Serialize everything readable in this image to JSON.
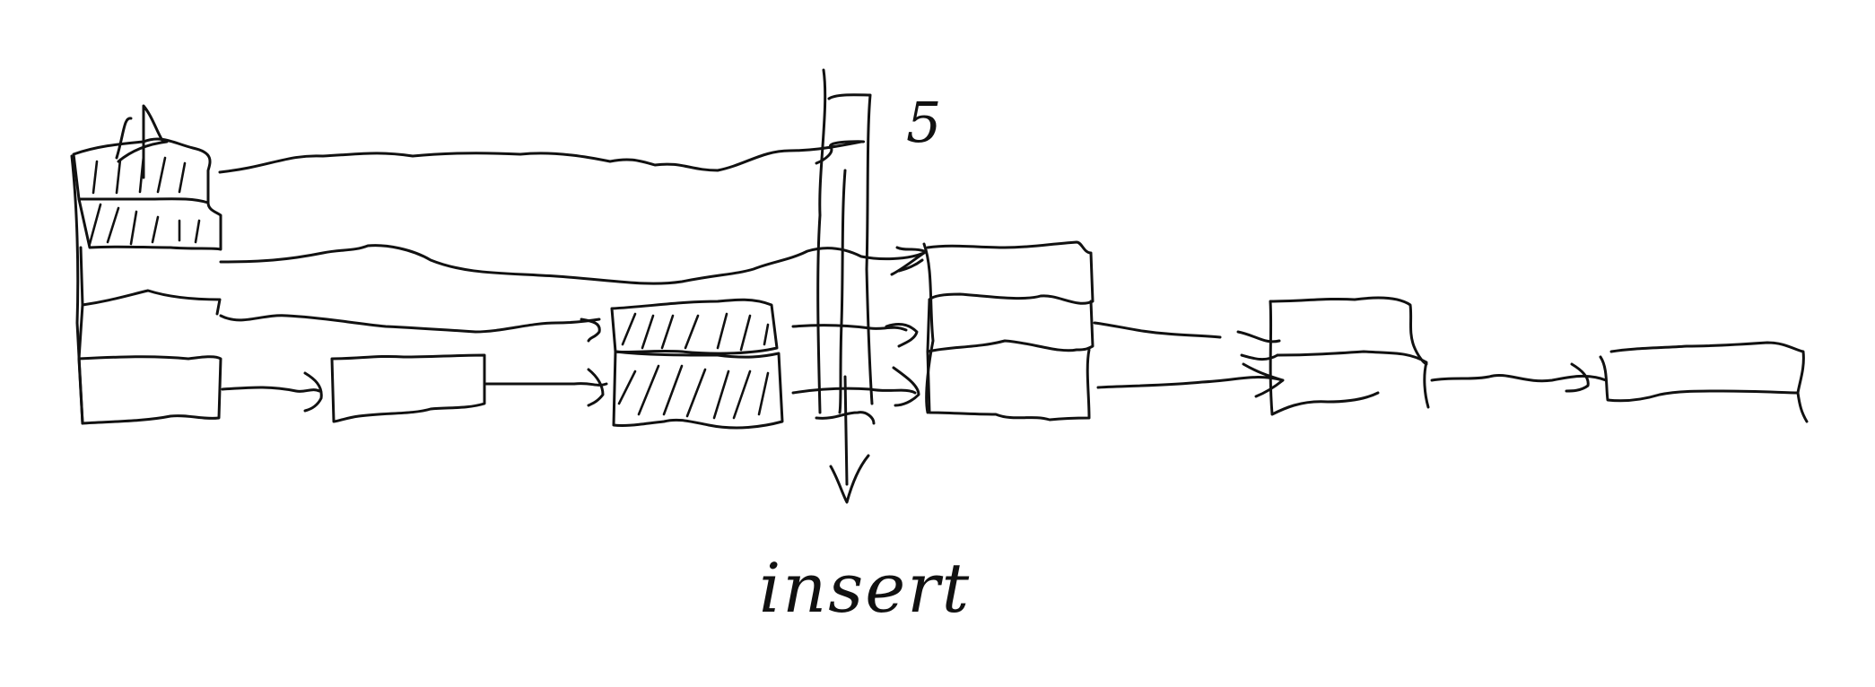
{
  "diagram": {
    "new_node_label": "5",
    "action_label": "insert",
    "ink_color": "#111111",
    "background_color": "#ffffff"
  }
}
